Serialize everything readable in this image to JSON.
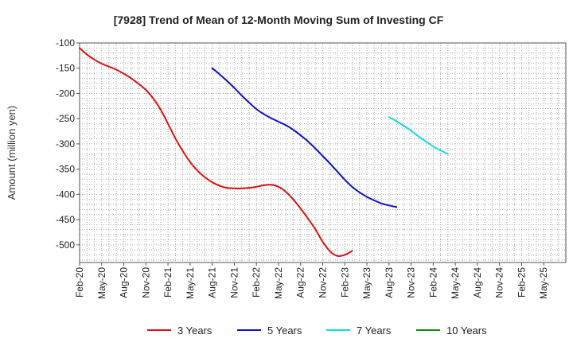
{
  "chart_data": {
    "type": "line",
    "title": "[7928]  Trend of Mean of 12-Month Moving Sum of Investing CF",
    "xlabel": "",
    "ylabel": "Amount (million yen)",
    "ylim": [
      -535,
      -100
    ],
    "yticks": [
      -100,
      -150,
      -200,
      -250,
      -300,
      -350,
      -400,
      -450,
      -500
    ],
    "grid": true,
    "legend_position": "bottom",
    "x_tick_labels": [
      "Feb-20",
      "May-20",
      "Aug-20",
      "Nov-20",
      "Feb-21",
      "May-21",
      "Aug-21",
      "Nov-21",
      "Feb-22",
      "May-22",
      "Aug-22",
      "Nov-22",
      "Feb-23",
      "May-23",
      "Aug-23",
      "Nov-23",
      "Feb-24",
      "May-24",
      "Aug-24",
      "Nov-24",
      "Feb-25",
      "May-25"
    ],
    "series": [
      {
        "name": "3 Years",
        "color": "#dd1111",
        "start_index": 0,
        "values": [
          -110,
          -123,
          -133,
          -141,
          -147,
          -153,
          -161,
          -170,
          -181,
          -193,
          -210,
          -232,
          -260,
          -289,
          -314,
          -336,
          -353,
          -366,
          -376,
          -383,
          -387,
          -388,
          -388,
          -387,
          -385,
          -382,
          -381,
          -385,
          -395,
          -410,
          -428,
          -448,
          -469,
          -494,
          -513,
          -522,
          -520,
          -512
        ]
      },
      {
        "name": "5 Years",
        "color": "#1111cc",
        "start_index": 18,
        "values": [
          -150,
          -162,
          -175,
          -189,
          -204,
          -218,
          -231,
          -241,
          -249,
          -256,
          -263,
          -272,
          -283,
          -295,
          -309,
          -324,
          -339,
          -355,
          -371,
          -385,
          -396,
          -405,
          -412,
          -418,
          -422,
          -425
        ]
      },
      {
        "name": "7 Years",
        "color": "#11dddd",
        "start_index": 42,
        "values": [
          -247,
          -255,
          -264,
          -274,
          -285,
          -295,
          -305,
          -313,
          -320
        ]
      },
      {
        "name": "10 Years",
        "color": "#118811",
        "start_index": 0,
        "values": []
      }
    ]
  }
}
